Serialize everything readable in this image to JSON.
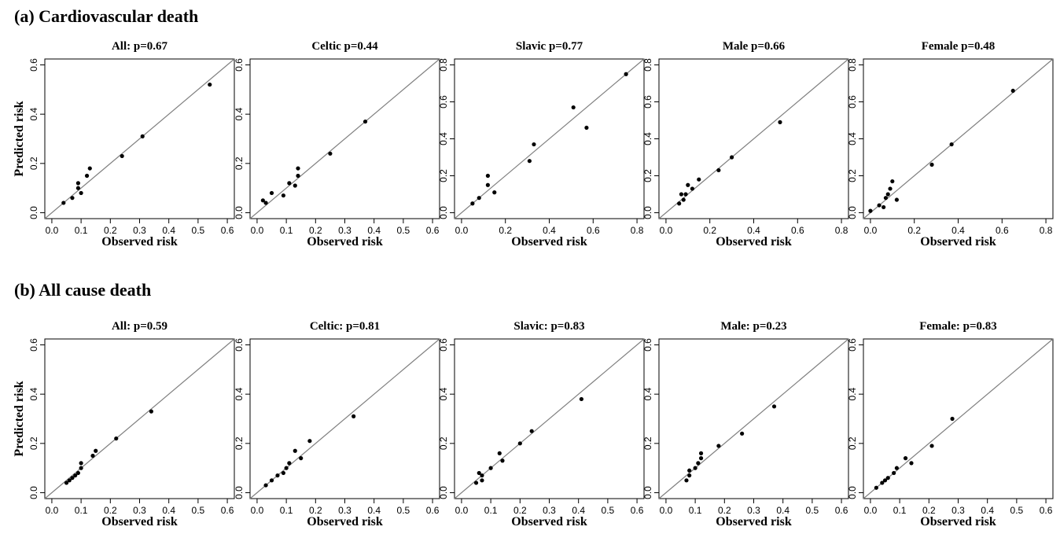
{
  "sections": [
    {
      "title": "(a) Cardiovascular death"
    },
    {
      "title": "(b) All cause death"
    }
  ],
  "chart_data": [
    {
      "type": "scatter",
      "section": 0,
      "title": "All: p=0.67",
      "xlabel": "Observed risk",
      "ylabel": "Predicted risk",
      "xlim": [
        0,
        0.6
      ],
      "ylim": [
        0,
        0.6
      ],
      "xticks": [
        "0.0",
        "0.1",
        "0.2",
        "0.3",
        "0.4",
        "0.5",
        "0.6"
      ],
      "yticks": [
        "0.0",
        "0.2",
        "0.4",
        "0.6"
      ],
      "identity_line": true,
      "x": [
        0.04,
        0.07,
        0.09,
        0.1,
        0.09,
        0.12,
        0.13,
        0.24,
        0.31,
        0.54
      ],
      "y": [
        0.04,
        0.06,
        0.1,
        0.08,
        0.12,
        0.15,
        0.18,
        0.23,
        0.31,
        0.52
      ]
    },
    {
      "type": "scatter",
      "section": 0,
      "title": "Celtic p=0.44",
      "xlabel": "Observed risk",
      "ylabel": "",
      "xlim": [
        0,
        0.6
      ],
      "ylim": [
        0,
        0.6
      ],
      "xticks": [
        "0.0",
        "0.1",
        "0.2",
        "0.3",
        "0.4",
        "0.5",
        "0.6"
      ],
      "yticks": [
        "0.0",
        "0.2",
        "0.4",
        "0.6"
      ],
      "identity_line": true,
      "x": [
        0.02,
        0.03,
        0.05,
        0.09,
        0.11,
        0.13,
        0.14,
        0.14,
        0.25,
        0.37
      ],
      "y": [
        0.05,
        0.04,
        0.08,
        0.07,
        0.12,
        0.11,
        0.18,
        0.15,
        0.24,
        0.37
      ]
    },
    {
      "type": "scatter",
      "section": 0,
      "title": "Slavic p=0.77",
      "xlabel": "Observed risk",
      "ylabel": "",
      "xlim": [
        0,
        0.8
      ],
      "ylim": [
        0,
        0.8
      ],
      "xticks": [
        "0.0",
        "0.2",
        "0.4",
        "0.6",
        "0.8"
      ],
      "yticks": [
        "0.0",
        "0.2",
        "0.4",
        "0.6",
        "0.8"
      ],
      "identity_line": true,
      "x": [
        0.05,
        0.08,
        0.12,
        0.12,
        0.15,
        0.31,
        0.33,
        0.51,
        0.57,
        0.75
      ],
      "y": [
        0.05,
        0.08,
        0.15,
        0.2,
        0.11,
        0.28,
        0.37,
        0.57,
        0.46,
        0.75
      ]
    },
    {
      "type": "scatter",
      "section": 0,
      "title": "Male p=0.66",
      "xlabel": "Observed risk",
      "ylabel": "",
      "xlim": [
        0,
        0.8
      ],
      "ylim": [
        0,
        0.8
      ],
      "xticks": [
        "0.0",
        "0.2",
        "0.4",
        "0.6",
        "0.8"
      ],
      "yticks": [
        "0.0",
        "0.2",
        "0.4",
        "0.6",
        "0.8"
      ],
      "identity_line": true,
      "x": [
        0.06,
        0.07,
        0.08,
        0.09,
        0.1,
        0.12,
        0.15,
        0.24,
        0.3,
        0.52
      ],
      "y": [
        0.05,
        0.1,
        0.07,
        0.1,
        0.15,
        0.13,
        0.18,
        0.23,
        0.3,
        0.49
      ]
    },
    {
      "type": "scatter",
      "section": 0,
      "title": "Female p=0.48",
      "xlabel": "Observed risk",
      "ylabel": "",
      "xlim": [
        0,
        0.8
      ],
      "ylim": [
        0,
        0.8
      ],
      "xticks": [
        "0.0",
        "0.2",
        "0.4",
        "0.6",
        "0.8"
      ],
      "yticks": [
        "0.0",
        "0.2",
        "0.4",
        "0.6",
        "0.8"
      ],
      "identity_line": true,
      "x": [
        0.0,
        0.04,
        0.06,
        0.07,
        0.08,
        0.09,
        0.1,
        0.12,
        0.28,
        0.37,
        0.65
      ],
      "y": [
        0.01,
        0.04,
        0.03,
        0.08,
        0.1,
        0.13,
        0.17,
        0.07,
        0.26,
        0.37,
        0.66
      ]
    },
    {
      "type": "scatter",
      "section": 1,
      "title": "All: p=0.59",
      "xlabel": "Observed risk",
      "ylabel": "Predicted risk",
      "xlim": [
        0,
        0.6
      ],
      "ylim": [
        0,
        0.6
      ],
      "xticks": [
        "0.0",
        "0.1",
        "0.2",
        "0.3",
        "0.4",
        "0.5",
        "0.6"
      ],
      "yticks": [
        "0.0",
        "0.2",
        "0.4",
        "0.6"
      ],
      "identity_line": true,
      "x": [
        0.05,
        0.06,
        0.07,
        0.08,
        0.09,
        0.1,
        0.1,
        0.14,
        0.15,
        0.22,
        0.34
      ],
      "y": [
        0.04,
        0.05,
        0.06,
        0.07,
        0.08,
        0.1,
        0.12,
        0.15,
        0.17,
        0.22,
        0.33
      ]
    },
    {
      "type": "scatter",
      "section": 1,
      "title": "Celtic: p=0.81",
      "xlabel": "Observed risk",
      "ylabel": "",
      "xlim": [
        0,
        0.6
      ],
      "ylim": [
        0,
        0.6
      ],
      "xticks": [
        "0.0",
        "0.1",
        "0.2",
        "0.3",
        "0.4",
        "0.5",
        "0.6"
      ],
      "yticks": [
        "0.0",
        "0.2",
        "0.4",
        "0.6"
      ],
      "identity_line": true,
      "x": [
        0.03,
        0.05,
        0.07,
        0.09,
        0.1,
        0.11,
        0.13,
        0.15,
        0.18,
        0.33
      ],
      "y": [
        0.03,
        0.05,
        0.07,
        0.08,
        0.1,
        0.12,
        0.17,
        0.14,
        0.21,
        0.31
      ]
    },
    {
      "type": "scatter",
      "section": 1,
      "title": "Slavic: p=0.83",
      "xlabel": "Observed risk",
      "ylabel": "",
      "xlim": [
        0,
        0.6
      ],
      "ylim": [
        0,
        0.6
      ],
      "xticks": [
        "0.0",
        "0.1",
        "0.2",
        "0.3",
        "0.4",
        "0.5",
        "0.6"
      ],
      "yticks": [
        "0.0",
        "0.2",
        "0.4",
        "0.6"
      ],
      "identity_line": true,
      "x": [
        0.05,
        0.06,
        0.07,
        0.07,
        0.1,
        0.13,
        0.14,
        0.2,
        0.24,
        0.41
      ],
      "y": [
        0.04,
        0.08,
        0.07,
        0.05,
        0.1,
        0.16,
        0.13,
        0.2,
        0.25,
        0.38
      ]
    },
    {
      "type": "scatter",
      "section": 1,
      "title": "Male: p=0.23",
      "xlabel": "Observed risk",
      "ylabel": "",
      "xlim": [
        0,
        0.6
      ],
      "ylim": [
        0,
        0.6
      ],
      "xticks": [
        "0.0",
        "0.1",
        "0.2",
        "0.3",
        "0.4",
        "0.5",
        "0.6"
      ],
      "yticks": [
        "0.0",
        "0.2",
        "0.4",
        "0.6"
      ],
      "identity_line": true,
      "x": [
        0.07,
        0.08,
        0.08,
        0.1,
        0.11,
        0.12,
        0.12,
        0.18,
        0.26,
        0.37
      ],
      "y": [
        0.05,
        0.07,
        0.09,
        0.1,
        0.12,
        0.14,
        0.16,
        0.19,
        0.24,
        0.35
      ]
    },
    {
      "type": "scatter",
      "section": 1,
      "title": "Female: p=0.83",
      "xlabel": "Observed risk",
      "ylabel": "",
      "xlim": [
        0,
        0.6
      ],
      "ylim": [
        0,
        0.6
      ],
      "xticks": [
        "0.0",
        "0.1",
        "0.2",
        "0.3",
        "0.4",
        "0.5",
        "0.6"
      ],
      "yticks": [
        "0.0",
        "0.2",
        "0.4",
        "0.6"
      ],
      "identity_line": true,
      "x": [
        0.02,
        0.04,
        0.05,
        0.06,
        0.08,
        0.09,
        0.12,
        0.14,
        0.21,
        0.28
      ],
      "y": [
        0.02,
        0.04,
        0.05,
        0.06,
        0.08,
        0.1,
        0.14,
        0.12,
        0.19,
        0.3
      ]
    }
  ]
}
